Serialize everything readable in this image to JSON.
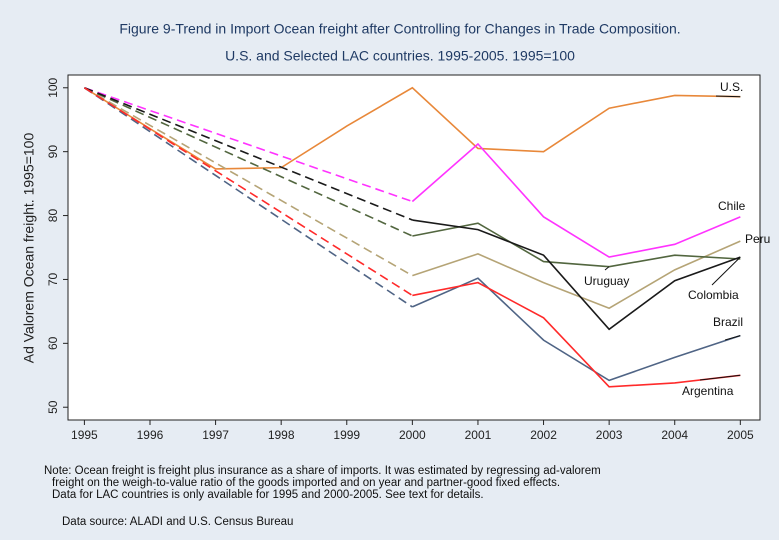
{
  "chart_data": {
    "type": "line",
    "title": "Figure 9-Trend in Import Ocean freight after Controlling for Changes in Trade Composition.",
    "subtitle": "U.S. and Selected LAC countries. 1995-2005. 1995=100",
    "y_label": "Ad Valorem Ocean freight. 1995=100",
    "x": [
      1995,
      1996,
      1997,
      1998,
      1999,
      2000,
      2001,
      2002,
      2003,
      2004,
      2005
    ],
    "xlim": [
      1994.75,
      2005.3
    ],
    "xticks": [
      1995,
      1996,
      1997,
      1998,
      1999,
      2000,
      2001,
      2002,
      2003,
      2004,
      2005
    ],
    "ylim": [
      48,
      102
    ],
    "yticks": [
      50,
      60,
      70,
      80,
      90,
      100
    ],
    "series": [
      {
        "name": "U.S.",
        "color": "#e8883a",
        "values": [
          100,
          93.6,
          87.3,
          87.5,
          94,
          100,
          90.5,
          90,
          96.8,
          98.8,
          98.6
        ]
      },
      {
        "name": "Chile",
        "color": "#ff33ff",
        "values": [
          100,
          null,
          null,
          null,
          null,
          82.2,
          91.2,
          79.8,
          73.5,
          75.5,
          79.8
        ]
      },
      {
        "name": "Peru",
        "color": "#b5a476",
        "values": [
          100,
          null,
          null,
          null,
          null,
          70.6,
          74,
          69.5,
          65.5,
          71.5,
          76
        ]
      },
      {
        "name": "Uruguay",
        "color": "#52663f",
        "values": [
          100,
          null,
          null,
          null,
          null,
          76.8,
          78.8,
          72.8,
          72,
          73.8,
          73.2
        ]
      },
      {
        "name": "Colombia",
        "color": "#1a1a1a",
        "values": [
          100,
          null,
          null,
          null,
          null,
          79.3,
          77.8,
          73.8,
          62.2,
          69.8,
          73.5
        ]
      },
      {
        "name": "Brazil",
        "color": "#4f6485",
        "values": [
          100,
          null,
          null,
          null,
          null,
          65.7,
          70.2,
          60.5,
          54.2,
          57.8,
          61.2
        ]
      },
      {
        "name": "Argentina",
        "color": "#ff2a2a",
        "values": [
          100,
          null,
          null,
          null,
          null,
          67.5,
          69.5,
          64,
          53.2,
          53.8,
          55
        ]
      }
    ],
    "notes": [
      "Note: Ocean freight is freight plus insurance as a share of imports. It was estimated by regressing ad-valorem",
      "freight on the weigh-to-value ratio of the goods imported and on year and partner-good fixed effects.",
      "Data for LAC countries is only available for 1995 and 2000-2005. See text for details."
    ],
    "source": "Data source: ALADI and U.S. Census Bureau"
  }
}
